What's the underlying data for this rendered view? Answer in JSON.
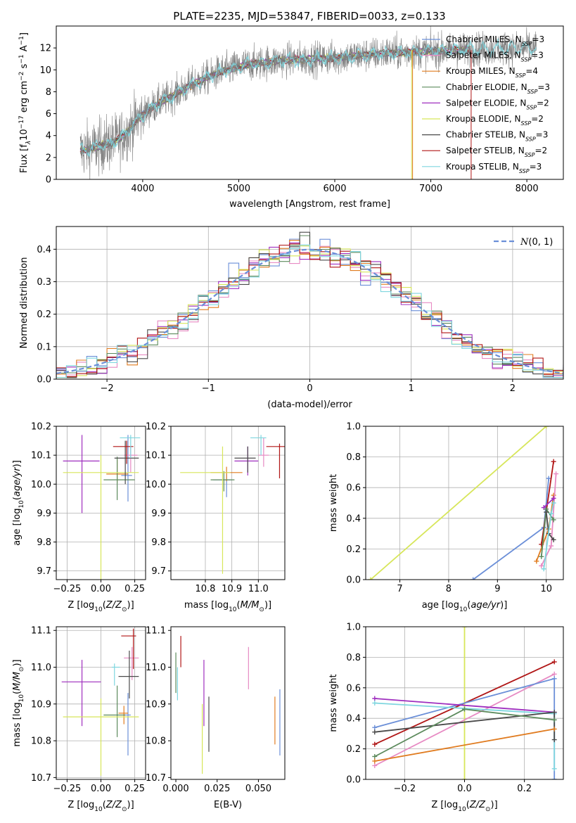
{
  "figure": {
    "title": "PLATE=2235, MJD=53847, FIBERID=0033, z=0.133"
  },
  "colors": {
    "Chabrier MILES": "#6b8fd8",
    "Salpeter MILES": "#e78ac3",
    "Kroupa MILES": "#e07b1f",
    "Chabrier ELODIE": "#5c8a5c",
    "Salpeter ELODIE": "#9f2fbf",
    "Kroupa ELODIE": "#d7e65a",
    "Chabrier STELIB": "#4a4a4a",
    "Salpeter STELIB": "#b01515",
    "Kroupa STELIB": "#7fd6df",
    "data": "#808080",
    "normal": "#6b8fd8"
  },
  "chart_data": [
    {
      "id": "spectrum",
      "type": "line",
      "xlabel": "wavelength [Angstrom, rest frame]",
      "ylabel": "Flux [f_λ10^-17 erg cm^-2 s^-1 A^-1]",
      "xlim": [
        3100,
        8380
      ],
      "ylim": [
        0,
        14
      ],
      "xticks": [
        4000,
        5000,
        6000,
        7000,
        8000
      ],
      "yticks": [
        0,
        2,
        4,
        6,
        8,
        10,
        12
      ],
      "grid": false,
      "legend_position": "right",
      "legend": [
        {
          "name": "Chabrier MILES",
          "sub": "SSP",
          "n": "=3"
        },
        {
          "name": "Salpeter MILES",
          "sub": "SSP",
          "n": "=3"
        },
        {
          "name": "Kroupa MILES",
          "sub": "SSP",
          "n": "=4"
        },
        {
          "name": "Chabrier ELODIE",
          "sub": "SSP",
          "n": "=3"
        },
        {
          "name": "Salpeter ELODIE",
          "sub": "SSP",
          "n": "=2"
        },
        {
          "name": "Kroupa ELODIE",
          "sub": "SSP",
          "n": "=2"
        },
        {
          "name": "Chabrier STELIB",
          "sub": "SSP",
          "n": "=3"
        },
        {
          "name": "Salpeter STELIB",
          "sub": "SSP",
          "n": "=2"
        },
        {
          "name": "Kroupa STELIB",
          "sub": "SSP",
          "n": "=3"
        }
      ],
      "data_range": [
        3350,
        8100
      ],
      "continuum": [
        [
          3350,
          2.6
        ],
        [
          3500,
          2.9
        ],
        [
          3700,
          3.4
        ],
        [
          3800,
          4.0
        ],
        [
          3950,
          5.5
        ],
        [
          4100,
          6.6
        ],
        [
          4300,
          7.6
        ],
        [
          4500,
          8.6
        ],
        [
          4800,
          9.8
        ],
        [
          5100,
          10.5
        ],
        [
          5500,
          10.9
        ],
        [
          6000,
          11.1
        ],
        [
          6500,
          11.5
        ],
        [
          7000,
          11.7
        ],
        [
          7500,
          11.9
        ],
        [
          8100,
          12.0
        ]
      ],
      "model_range": [
        3350,
        7420
      ],
      "model_cutoffs": [
        {
          "x": 6800,
          "name": "Kroupa ELODIE"
        },
        {
          "x": 6810,
          "name": "Kroupa MILES"
        },
        {
          "x": 7420,
          "name": "Salpeter STELIB"
        }
      ]
    },
    {
      "id": "residuals",
      "type": "line",
      "xlabel": "(data-model)/error",
      "ylabel": "Normed distribution",
      "xlim": [
        -2.5,
        2.5
      ],
      "ylim": [
        0,
        0.47
      ],
      "xticks": [
        -2,
        -1,
        0,
        1,
        2
      ],
      "yticks": [
        0.0,
        0.1,
        0.2,
        0.3,
        0.4
      ],
      "grid": true,
      "legend_position": "upper right",
      "legend": [
        {
          "name": "N(0,1)",
          "style": "dashed"
        }
      ],
      "bin_width": 0.1,
      "normal": {
        "mu": 0,
        "sigma": 1
      }
    },
    {
      "id": "age_vs_Z",
      "type": "scatter",
      "xlabel": "Z [log10(Z/Z⊙)]",
      "ylabel": "age  [log10(age/yr)]",
      "xlim": [
        -0.33,
        0.33
      ],
      "ylim": [
        9.67,
        10.2
      ],
      "xticks": [
        -0.25,
        0.0,
        0.25
      ],
      "yticks": [
        9.7,
        9.8,
        9.9,
        10.0,
        10.1,
        10.2
      ],
      "grid": true,
      "points": [
        {
          "name": "Chabrier MILES",
          "x": 0.2,
          "xerr": [
            0.05,
            0.03
          ],
          "y": 10.03,
          "yerr": [
            0.09,
            0.14
          ]
        },
        {
          "name": "Salpeter MILES",
          "x": 0.22,
          "xerr": [
            0.05,
            0.05
          ],
          "y": 10.1,
          "yerr": [
            0.06,
            0.03
          ]
        },
        {
          "name": "Kroupa MILES",
          "x": 0.12,
          "xerr": [
            0.08,
            0.08
          ],
          "y": 10.035,
          "yerr": [
            0.03,
            0.05
          ]
        },
        {
          "name": "Chabrier ELODIE",
          "x": 0.12,
          "xerr": [
            0.1,
            0.13
          ],
          "y": 10.015,
          "yerr": [
            0.07,
            0.08
          ]
        },
        {
          "name": "Salpeter ELODIE",
          "x": -0.14,
          "xerr": [
            0.14,
            0.13
          ],
          "y": 10.08,
          "yerr": [
            0.18,
            0.09
          ]
        },
        {
          "name": "Kroupa ELODIE",
          "x": 0.0,
          "xerr": [
            0.28,
            0.28
          ],
          "y": 10.04,
          "yerr": [
            0.37,
            0.06
          ]
        },
        {
          "name": "Chabrier STELIB",
          "x": 0.18,
          "xerr": [
            0.08,
            0.1
          ],
          "y": 10.09,
          "yerr": [
            0.09,
            0.06
          ]
        },
        {
          "name": "Salpeter STELIB",
          "x": 0.19,
          "xerr": [
            0.1,
            0.05
          ],
          "y": 10.13,
          "yerr": [
            0.06,
            0.02
          ]
        },
        {
          "name": "Kroupa STELIB",
          "x": 0.22,
          "xerr": [
            0.08,
            0.07
          ],
          "y": 10.16,
          "yerr": [
            0.07,
            0.01
          ]
        }
      ]
    },
    {
      "id": "age_vs_mass",
      "type": "scatter",
      "xlabel": "mass [log10(M/M⊙)]",
      "ylabel": "",
      "xlim": [
        10.67,
        11.1
      ],
      "ylim": [
        9.67,
        10.2
      ],
      "xticks": [
        10.8,
        10.9,
        11.0
      ],
      "yticks": [
        9.7,
        9.8,
        9.9,
        10.0,
        10.1,
        10.2
      ],
      "grid": true,
      "points": [
        {
          "name": "Chabrier MILES",
          "x": 10.88,
          "xerr": [
            0.05,
            0.02
          ],
          "y": 10.015,
          "yerr": [
            0.06,
            0.02
          ]
        },
        {
          "name": "Salpeter MILES",
          "x": 11.02,
          "xerr": [
            0.02,
            0.02
          ],
          "y": 10.1,
          "yerr": [
            0.04,
            0.06
          ]
        },
        {
          "name": "Kroupa MILES",
          "x": 10.88,
          "xerr": [
            0.06,
            0.06
          ],
          "y": 10.04,
          "yerr": [
            0.03,
            0.02
          ]
        },
        {
          "name": "Chabrier ELODIE",
          "x": 10.87,
          "xerr": [
            0.05,
            0.04
          ],
          "y": 10.015,
          "yerr": [
            0.04,
            0.03
          ]
        },
        {
          "name": "Salpeter ELODIE",
          "x": 10.96,
          "xerr": [
            0.05,
            0.04
          ],
          "y": 10.08,
          "yerr": [
            0.05,
            0.05
          ]
        },
        {
          "name": "Kroupa ELODIE",
          "x": 10.865,
          "xerr": [
            0.16,
            0.03
          ],
          "y": 10.04,
          "yerr": [
            0.35,
            0.09
          ]
        },
        {
          "name": "Chabrier STELIB",
          "x": 10.96,
          "xerr": [
            0.05,
            0.03
          ],
          "y": 10.09,
          "yerr": [
            0.05,
            0.04
          ]
        },
        {
          "name": "Salpeter STELIB",
          "x": 11.08,
          "xerr": [
            0.05,
            0.02
          ],
          "y": 10.13,
          "yerr": [
            0.11,
            0.01
          ]
        },
        {
          "name": "Kroupa STELIB",
          "x": 11.01,
          "xerr": [
            0.04,
            0.02
          ],
          "y": 10.16,
          "yerr": [
            0.06,
            0.01
          ]
        }
      ]
    },
    {
      "id": "weight_vs_age",
      "type": "line",
      "xlabel": "age  [log10(age/yr)]",
      "ylabel": "mass weight",
      "xlim": [
        6.3,
        10.35
      ],
      "ylim": [
        0,
        1
      ],
      "xticks": [
        7,
        8,
        9,
        10
      ],
      "yticks": [
        0.0,
        0.2,
        0.4,
        0.6,
        0.8,
        1.0
      ],
      "grid": true,
      "series": [
        {
          "name": "Kroupa ELODIE",
          "x": [
            6.4,
            10.0
          ],
          "y": [
            0.0,
            1.0
          ]
        },
        {
          "name": "Chabrier MILES",
          "x": [
            8.5,
            9.95,
            10.05
          ],
          "y": [
            0.0,
            0.34,
            0.66
          ]
        },
        {
          "name": "Salpeter STELIB",
          "x": [
            9.9,
            10.15
          ],
          "y": [
            0.23,
            0.77
          ]
        },
        {
          "name": "Kroupa MILES",
          "x": [
            9.8,
            10.05,
            10.15
          ],
          "y": [
            0.12,
            0.33,
            0.55
          ]
        },
        {
          "name": "Salpeter MILES",
          "x": [
            9.9,
            10.1,
            10.2
          ],
          "y": [
            0.09,
            0.22,
            0.69
          ]
        },
        {
          "name": "Salpeter ELODIE",
          "x": [
            9.95,
            10.15
          ],
          "y": [
            0.47,
            0.53
          ]
        },
        {
          "name": "Chabrier ELODIE",
          "x": [
            9.9,
            10.0,
            10.15
          ],
          "y": [
            0.15,
            0.46,
            0.39
          ]
        },
        {
          "name": "Chabrier STELIB",
          "x": [
            10.0,
            10.05,
            10.15
          ],
          "y": [
            0.44,
            0.3,
            0.26
          ]
        },
        {
          "name": "Kroupa STELIB",
          "x": [
            9.95,
            10.1,
            10.15
          ],
          "y": [
            0.07,
            0.43,
            0.5
          ]
        }
      ]
    },
    {
      "id": "mass_vs_Z",
      "type": "scatter",
      "xlabel": "Z [log10(Z/Z⊙)]",
      "ylabel": "mass [log10(M/M⊙)]",
      "xlim": [
        -0.33,
        0.33
      ],
      "ylim": [
        10.695,
        11.11
      ],
      "xticks": [
        -0.25,
        0.0,
        0.25
      ],
      "yticks": [
        10.7,
        10.8,
        10.9,
        11.0,
        11.1
      ],
      "grid": true,
      "points": [
        {
          "name": "Chabrier MILES",
          "x": 0.2,
          "xerr": [
            0.03,
            0.02
          ],
          "y": 10.87,
          "yerr": [
            0.11,
            0.06
          ]
        },
        {
          "name": "Salpeter MILES",
          "x": 0.23,
          "xerr": [
            0.06,
            0.05
          ],
          "y": 11.025,
          "yerr": [
            0.06,
            0.03
          ]
        },
        {
          "name": "Kroupa MILES",
          "x": 0.17,
          "xerr": [
            0.04,
            0.03
          ],
          "y": 10.875,
          "yerr": [
            0.03,
            0.02
          ]
        },
        {
          "name": "Chabrier ELODIE",
          "x": 0.12,
          "xerr": [
            0.1,
            0.06
          ],
          "y": 10.87,
          "yerr": [
            0.06,
            0.08
          ]
        },
        {
          "name": "Salpeter ELODIE",
          "x": -0.14,
          "xerr": [
            0.15,
            0.14
          ],
          "y": 10.96,
          "yerr": [
            0.12,
            0.06
          ]
        },
        {
          "name": "Kroupa ELODIE",
          "x": 0.0,
          "xerr": [
            0.28,
            0.28
          ],
          "y": 10.865,
          "yerr": [
            0.16,
            0.05
          ]
        },
        {
          "name": "Chabrier STELIB",
          "x": 0.21,
          "xerr": [
            0.08,
            0.07
          ],
          "y": 10.975,
          "yerr": [
            0.06,
            0.07
          ]
        },
        {
          "name": "Salpeter STELIB",
          "x": 0.24,
          "xerr": [
            0.09,
            0.02
          ],
          "y": 11.085,
          "yerr": [
            0.09,
            0.02
          ]
        },
        {
          "name": "Kroupa STELIB",
          "x": 0.1,
          "xerr": [
            0.02,
            0.04
          ],
          "y": 11.0,
          "yerr": [
            0.05,
            0.01
          ]
        }
      ]
    },
    {
      "id": "mass_vs_ebv",
      "type": "scatter",
      "xlabel": "E(B-V)",
      "ylabel": "",
      "xlim": [
        -0.003,
        0.066
      ],
      "ylim": [
        10.695,
        11.11
      ],
      "xticks": [
        0.0,
        0.025,
        0.05
      ],
      "yticks": [
        10.7,
        10.8,
        10.9,
        11.0,
        11.1
      ],
      "grid": false,
      "points": [
        {
          "name": "Chabrier MILES",
          "x": 0.063,
          "yerr": [
            10.76,
            10.94
          ]
        },
        {
          "name": "Salpeter MILES",
          "x": 0.044,
          "yerr": [
            10.94,
            11.055
          ]
        },
        {
          "name": "Kroupa MILES",
          "x": 0.06,
          "yerr": [
            10.79,
            10.92
          ]
        },
        {
          "name": "Chabrier ELODIE",
          "x": 0.0,
          "yerr": [
            10.93,
            11.04
          ]
        },
        {
          "name": "Salpeter ELODIE",
          "x": 0.017,
          "yerr": [
            10.84,
            11.02
          ]
        },
        {
          "name": "Kroupa ELODIE",
          "x": 0.016,
          "yerr": [
            10.71,
            10.9
          ]
        },
        {
          "name": "Chabrier STELIB",
          "x": 0.02,
          "yerr": [
            10.77,
            10.92
          ]
        },
        {
          "name": "Salpeter STELIB",
          "x": 0.003,
          "yerr": [
            11.0,
            11.085
          ]
        },
        {
          "name": "Kroupa STELIB",
          "x": 0.001,
          "yerr": [
            10.91,
            11.0
          ]
        }
      ]
    },
    {
      "id": "weight_vs_Z",
      "type": "line",
      "xlabel": "Z [log10(Z/Z⊙)]",
      "ylabel": "mass weight",
      "xlim": [
        -0.33,
        0.33
      ],
      "ylim": [
        0,
        1
      ],
      "xticks": [
        -0.2,
        0.0,
        0.2
      ],
      "yticks": [
        0.0,
        0.2,
        0.4,
        0.6,
        0.8,
        1.0
      ],
      "grid": true,
      "series": [
        {
          "name": "Kroupa ELODIE",
          "x": [
            0.0,
            0.0
          ],
          "y": [
            0.0,
            1.0
          ]
        },
        {
          "name": "Salpeter STELIB",
          "x": [
            -0.3,
            0.3
          ],
          "y": [
            0.23,
            0.77
          ]
        },
        {
          "name": "Salpeter MILES",
          "x": [
            -0.3,
            0.3
          ],
          "y": [
            0.09,
            0.69
          ]
        },
        {
          "name": "Chabrier MILES",
          "x": [
            -0.3,
            0.3,
            0.3
          ],
          "y": [
            0.34,
            0.66,
            0.0
          ]
        },
        {
          "name": "Salpeter ELODIE",
          "x": [
            -0.3,
            0.3
          ],
          "y": [
            0.53,
            0.44
          ]
        },
        {
          "name": "Kroupa STELIB",
          "x": [
            -0.3,
            0.3,
            0.3
          ],
          "y": [
            0.5,
            0.43,
            0.07
          ]
        },
        {
          "name": "Chabrier STELIB",
          "x": [
            -0.3,
            0.3,
            0.3
          ],
          "y": [
            0.31,
            0.44,
            0.26
          ]
        },
        {
          "name": "Chabrier ELODIE",
          "x": [
            -0.3,
            0.0,
            0.3
          ],
          "y": [
            0.15,
            0.46,
            0.39
          ]
        },
        {
          "name": "Kroupa MILES",
          "x": [
            -0.3,
            0.3
          ],
          "y": [
            0.12,
            0.33
          ]
        }
      ]
    }
  ]
}
